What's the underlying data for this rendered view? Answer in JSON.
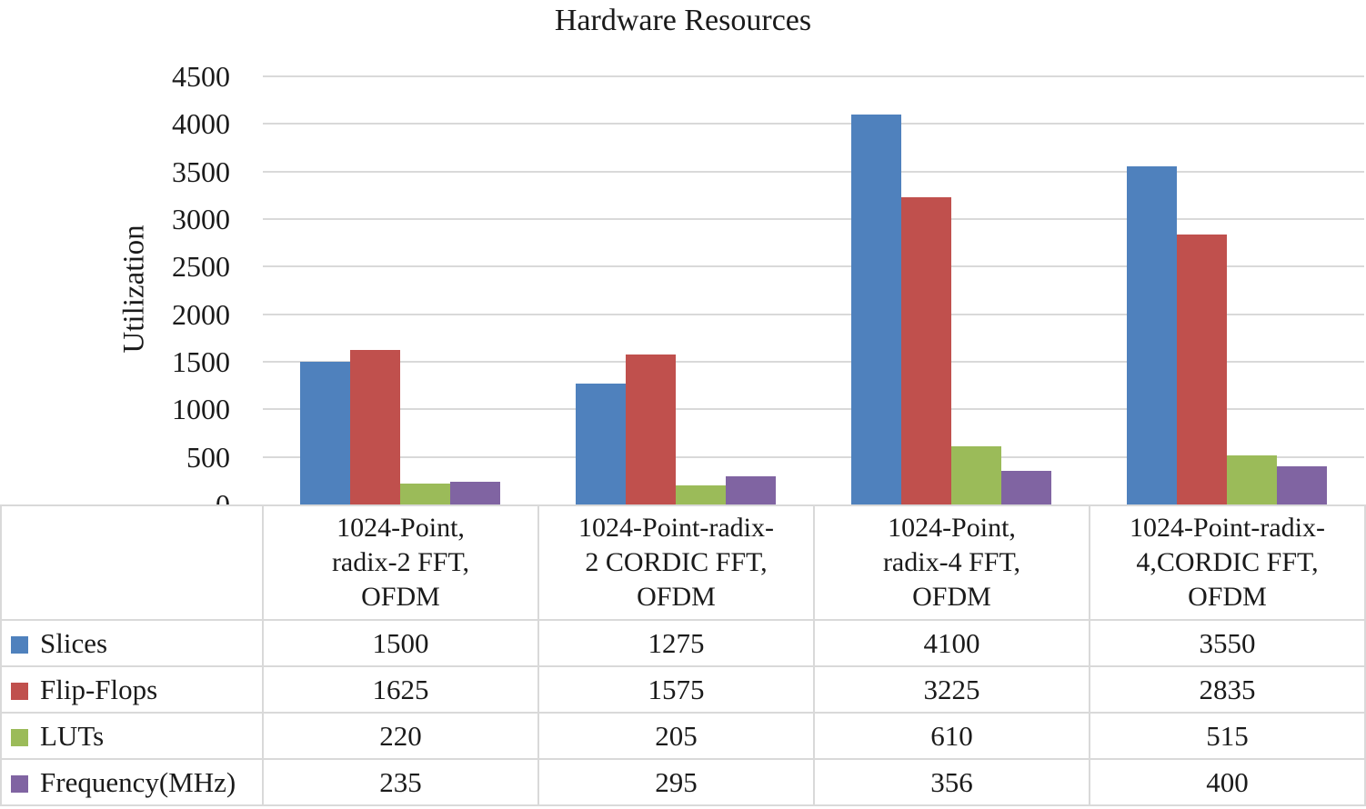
{
  "chart_data": {
    "type": "bar",
    "title": "Hardware Resources",
    "xlabel": "",
    "ylabel": "Utilization",
    "ylim": [
      0,
      4500
    ],
    "ytick_interval": 500,
    "grid": true,
    "legend_position": "data-table-row-headers",
    "data_table_shown": true,
    "categories": [
      "1024-Point, radix-2 FFT, OFDM",
      "1024-Point-radix-2 CORDIC FFT, OFDM",
      "1024-Point, radix-4 FFT, OFDM",
      "1024-Point-radix-4,CORDIC FFT, OFDM"
    ],
    "category_lines": [
      [
        "1024-Point,",
        "radix-2 FFT,",
        "OFDM"
      ],
      [
        "1024-Point-radix-",
        "2 CORDIC FFT,",
        "OFDM"
      ],
      [
        "1024-Point,",
        "radix-4 FFT,",
        "OFDM"
      ],
      [
        "1024-Point-radix-",
        "4,CORDIC FFT,",
        "OFDM"
      ]
    ],
    "series": [
      {
        "name": "Slices",
        "color": "#4F81BD",
        "values": [
          1500,
          1275,
          4100,
          3550
        ]
      },
      {
        "name": "Flip-Flops",
        "color": "#C0504D",
        "values": [
          1625,
          1575,
          3225,
          2835
        ]
      },
      {
        "name": "LUTs",
        "color": "#9BBB59",
        "values": [
          220,
          205,
          610,
          515
        ]
      },
      {
        "name": "Frequency(MHz)",
        "color": "#8064A2",
        "values": [
          235,
          295,
          356,
          400
        ]
      }
    ]
  },
  "colors": {
    "gridline": "#D9D9D9",
    "table_border": "#D9D9D9",
    "text": "#1A1A1A",
    "background": "#FFFFFF"
  }
}
